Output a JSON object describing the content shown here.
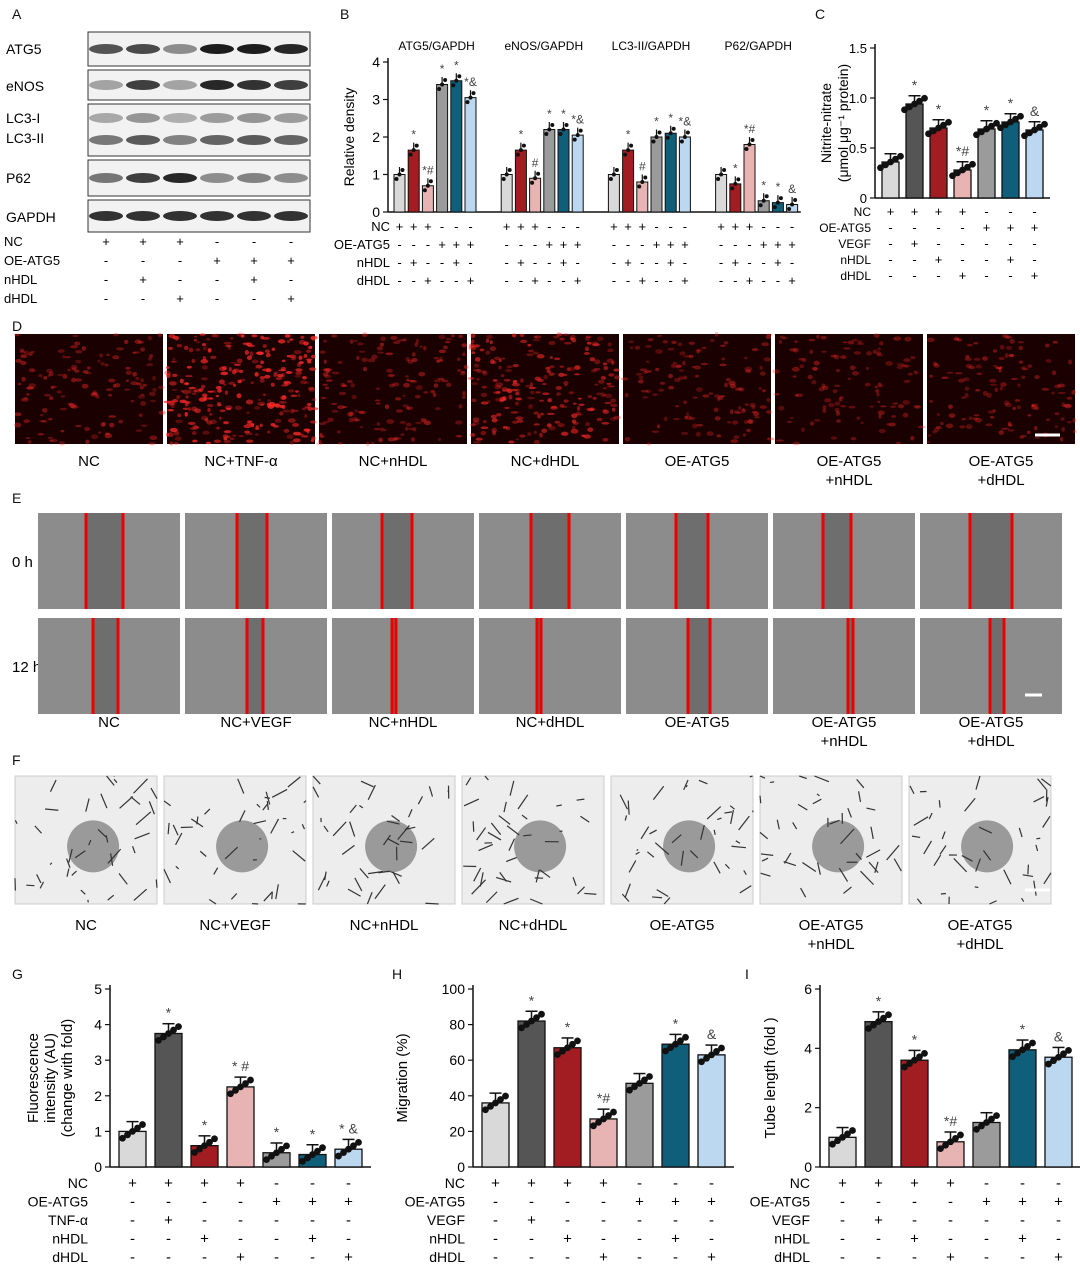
{
  "panels": {
    "A": "A",
    "B": "B",
    "C": "C",
    "D": "D",
    "E": "E",
    "F": "F",
    "G": "G",
    "H": "H",
    "I": "I"
  },
  "panel_a": {
    "bands": [
      "ATG5",
      "eNOS",
      "LC3-I",
      "LC3-II",
      "P62",
      "GAPDH"
    ],
    "rows": [
      {
        "label": "NC",
        "signs": [
          "+",
          "+",
          "+",
          "-",
          "-",
          "-"
        ]
      },
      {
        "label": "OE-ATG5",
        "signs": [
          "-",
          "-",
          "-",
          "+",
          "+",
          "+"
        ]
      },
      {
        "label": "nHDL",
        "signs": [
          "-",
          "+",
          "-",
          "-",
          "+",
          "-"
        ]
      },
      {
        "label": "dHDL",
        "signs": [
          "-",
          "-",
          "+",
          "-",
          "-",
          "+"
        ]
      }
    ]
  },
  "panel_d": {
    "labels": [
      "NC",
      "NC+TNF-α",
      "NC+nHDL",
      "NC+dHDL",
      "OE-ATG5",
      "OE-ATG5\n+nHDL",
      "OE-ATG5\n+dHDL"
    ]
  },
  "panel_e": {
    "labels": [
      "NC",
      "NC+VEGF",
      "NC+nHDL",
      "NC+dHDL",
      "OE-ATG5",
      "OE-ATG5\n+nHDL",
      "OE-ATG5\n+dHDL"
    ],
    "rows": [
      "0 h",
      "12 h"
    ]
  },
  "panel_f": {
    "labels": [
      "NC",
      "NC+VEGF",
      "NC+nHDL",
      "NC+dHDL",
      "OE-ATG5",
      "OE-ATG5\n+nHDL",
      "OE-ATG5\n+dHDL"
    ]
  },
  "chart_data": [
    {
      "id": "B",
      "type": "bar",
      "ylabel": "Relative density",
      "ylim": [
        0,
        4
      ],
      "yticks": [
        0,
        1,
        2,
        3,
        4
      ],
      "groups": [
        {
          "title": "ATG5/GAPDH",
          "values": [
            1.0,
            1.65,
            0.7,
            3.4,
            3.5,
            3.05
          ],
          "ann": [
            "",
            "*",
            "*#",
            "*",
            "*",
            "*&"
          ]
        },
        {
          "title": "eNOS/GAPDH",
          "values": [
            1.0,
            1.65,
            0.9,
            2.2,
            2.2,
            2.05
          ],
          "ann": [
            "",
            "*",
            "#",
            "*",
            "*",
            "*&"
          ]
        },
        {
          "title": "LC3-II/GAPDH",
          "values": [
            1.0,
            1.65,
            0.8,
            2.0,
            2.1,
            2.0
          ],
          "ann": [
            "",
            "*",
            "#",
            "*",
            "*",
            "*&"
          ]
        },
        {
          "title": "P62/GAPDH",
          "values": [
            1.0,
            0.75,
            1.8,
            0.3,
            0.25,
            0.2
          ],
          "ann": [
            "",
            "*",
            "*#",
            "*",
            "*",
            "&"
          ]
        }
      ],
      "rows": [
        {
          "label": "NC",
          "signs": [
            "+",
            "+",
            "+",
            "-",
            "-",
            "-"
          ]
        },
        {
          "label": "OE-ATG5",
          "signs": [
            "-",
            "-",
            "-",
            "+",
            "+",
            "+"
          ]
        },
        {
          "label": "nHDL",
          "signs": [
            "-",
            "+",
            "-",
            "-",
            "+",
            "-"
          ]
        },
        {
          "label": "dHDL",
          "signs": [
            "-",
            "-",
            "+",
            "-",
            "-",
            "+"
          ]
        }
      ]
    },
    {
      "id": "C",
      "type": "bar",
      "ylabel": "Nitrite-nitrate",
      "ylabel2": "(μmol μg⁻¹ protein)",
      "ylim": [
        0,
        1.5
      ],
      "yticks": [
        "0",
        "0.5",
        "1.0",
        "1.5"
      ],
      "ytickvals": [
        0,
        0.5,
        1.0,
        1.5
      ],
      "values": [
        0.36,
        0.94,
        0.7,
        0.28,
        0.69,
        0.76,
        0.68
      ],
      "ann": [
        "",
        "*",
        "*",
        "*#",
        "*",
        "*",
        "&"
      ],
      "rows": [
        {
          "label": "NC",
          "signs": [
            "+",
            "+",
            "+",
            "+",
            "-",
            "-",
            "-"
          ]
        },
        {
          "label": "OE-ATG5",
          "signs": [
            "-",
            "-",
            "-",
            "-",
            "+",
            "+",
            "+"
          ]
        },
        {
          "label": "VEGF",
          "signs": [
            "-",
            "+",
            "-",
            "-",
            "-",
            "-",
            "-"
          ]
        },
        {
          "label": "nHDL",
          "signs": [
            "-",
            "-",
            "+",
            "-",
            "-",
            "+",
            "-"
          ]
        },
        {
          "label": "dHDL",
          "signs": [
            "-",
            "-",
            "-",
            "+",
            "-",
            "-",
            "+"
          ]
        }
      ]
    },
    {
      "id": "G",
      "type": "bar",
      "ylabel": "Fluorescence",
      "ylabel2": "intensity (AU)",
      "ylabel3": "(change with fold)",
      "ylim": [
        0,
        5
      ],
      "yticks": [
        "0",
        "1",
        "2",
        "3",
        "4",
        "5"
      ],
      "ytickvals": [
        0,
        1,
        2,
        3,
        4,
        5
      ],
      "values": [
        1.0,
        3.75,
        0.6,
        2.25,
        0.4,
        0.35,
        0.5
      ],
      "ann": [
        "",
        "*",
        "*",
        "* #",
        "*",
        "*",
        "* &"
      ],
      "rows": [
        {
          "label": "NC",
          "signs": [
            "+",
            "+",
            "+",
            "+",
            "-",
            "-",
            "-"
          ]
        },
        {
          "label": "OE-ATG5",
          "signs": [
            "-",
            "-",
            "-",
            "-",
            "+",
            "+",
            "+"
          ]
        },
        {
          "label": "TNF-α",
          "signs": [
            "-",
            "+",
            "-",
            "-",
            "-",
            "-",
            "-"
          ]
        },
        {
          "label": "nHDL",
          "signs": [
            "-",
            "-",
            "+",
            "-",
            "-",
            "+",
            "-"
          ]
        },
        {
          "label": "dHDL",
          "signs": [
            "-",
            "-",
            "-",
            "+",
            "-",
            "-",
            "+"
          ]
        }
      ]
    },
    {
      "id": "H",
      "type": "bar",
      "ylabel": "Migration (%)",
      "ylim": [
        0,
        100
      ],
      "yticks": [
        "0",
        "20",
        "40",
        "60",
        "80",
        "100"
      ],
      "ytickvals": [
        0,
        20,
        40,
        60,
        80,
        100
      ],
      "values": [
        36,
        82,
        67,
        27,
        47,
        69,
        63
      ],
      "ann": [
        "",
        "*",
        "*",
        "*#",
        "",
        "*",
        "&"
      ],
      "rows": [
        {
          "label": "NC",
          "signs": [
            "+",
            "+",
            "+",
            "+",
            "-",
            "-",
            "-"
          ]
        },
        {
          "label": "OE-ATG5",
          "signs": [
            "-",
            "-",
            "-",
            "-",
            "+",
            "+",
            "+"
          ]
        },
        {
          "label": "VEGF",
          "signs": [
            "-",
            "+",
            "-",
            "-",
            "-",
            "-",
            "-"
          ]
        },
        {
          "label": "nHDL",
          "signs": [
            "-",
            "-",
            "+",
            "-",
            "-",
            "+",
            "-"
          ]
        },
        {
          "label": "dHDL",
          "signs": [
            "-",
            "-",
            "-",
            "+",
            "-",
            "-",
            "+"
          ]
        }
      ]
    },
    {
      "id": "I",
      "type": "bar",
      "ylabel": "Tube length  (fold )",
      "ylim": [
        0,
        6
      ],
      "yticks": [
        "0",
        "2",
        "4",
        "6"
      ],
      "ytickvals": [
        0,
        2,
        4,
        6
      ],
      "values": [
        1.0,
        4.9,
        3.6,
        0.85,
        1.5,
        3.95,
        3.7
      ],
      "ann": [
        "",
        "*",
        "*",
        "*#",
        "",
        "*",
        "&"
      ],
      "rows": [
        {
          "label": "NC",
          "signs": [
            "+",
            "+",
            "+",
            "+",
            "-",
            "-",
            "-"
          ]
        },
        {
          "label": "OE-ATG5",
          "signs": [
            "-",
            "-",
            "-",
            "-",
            "+",
            "+",
            "+"
          ]
        },
        {
          "label": "VEGF",
          "signs": [
            "-",
            "+",
            "-",
            "-",
            "-",
            "-",
            "-"
          ]
        },
        {
          "label": "nHDL",
          "signs": [
            "-",
            "-",
            "+",
            "-",
            "-",
            "+",
            "-"
          ]
        },
        {
          "label": "dHDL",
          "signs": [
            "-",
            "-",
            "-",
            "+",
            "-",
            "-",
            "+"
          ]
        }
      ]
    }
  ],
  "colors": {
    "c1": "#d9d9d9",
    "c2": "#555555",
    "c3": "#a11d22",
    "c4": "#e8b3b3",
    "c5": "#9b9b9b",
    "c6": "#0f5f7a",
    "c7": "#bcd7f0"
  }
}
